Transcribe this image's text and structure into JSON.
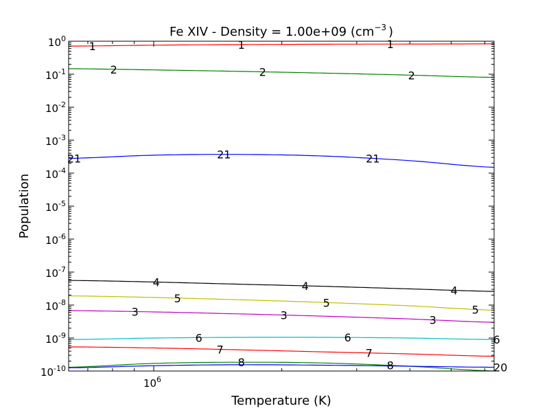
{
  "chart_data": {
    "type": "line",
    "title": "Fe XIV -  Density =   1.00e+09 (cm",
    "title_sup": "−3",
    "title_end": ")",
    "xlabel": "Temperature (K)",
    "ylabel": "Population",
    "xscale": "log",
    "yscale": "log",
    "xlim_log10": [
      5.8,
      6.8
    ],
    "ylim": [
      1e-10,
      1
    ],
    "x_log10": [
      5.8,
      6.0,
      6.2,
      6.4,
      6.6,
      6.8
    ],
    "xticks": [
      {
        "base": "10",
        "exp": "6",
        "log10": 6
      }
    ],
    "yticks": [
      {
        "base": "10",
        "exp": "0",
        "log10": 0
      },
      {
        "base": "10",
        "exp": "-1",
        "log10": -1
      },
      {
        "base": "10",
        "exp": "-2",
        "log10": -2
      },
      {
        "base": "10",
        "exp": "-3",
        "log10": -3
      },
      {
        "base": "10",
        "exp": "-4",
        "log10": -4
      },
      {
        "base": "10",
        "exp": "-5",
        "log10": -5
      },
      {
        "base": "10",
        "exp": "-6",
        "log10": -6
      },
      {
        "base": "10",
        "exp": "-7",
        "log10": -7
      },
      {
        "base": "10",
        "exp": "-8",
        "log10": -8
      },
      {
        "base": "10",
        "exp": "-9",
        "log10": -9
      },
      {
        "base": "10",
        "exp": "-10",
        "log10": -10
      }
    ],
    "series": [
      {
        "name": "1",
        "color": "#ff0000",
        "values": [
          0.71,
          0.76,
          0.79,
          0.81,
          0.82,
          0.83
        ],
        "label_x_log10": [
          5.856,
          6.206,
          6.556
        ]
      },
      {
        "name": "2",
        "color": "#008000",
        "values": [
          0.147,
          0.135,
          0.122,
          0.108,
          0.094,
          0.08
        ],
        "label_x_log10": [
          5.906,
          6.256,
          6.606
        ]
      },
      {
        "name": "21",
        "color": "#0000ff",
        "values": [
          0.00028,
          0.00035,
          0.00037,
          0.00033,
          0.00024,
          0.00015
        ],
        "label_x_log10": [
          5.813,
          6.165,
          6.515
        ]
      },
      {
        "name": "4",
        "color": "#000000",
        "values": [
          5.6e-08,
          5e-08,
          4.3e-08,
          3.7e-08,
          3.1e-08,
          2.6e-08
        ],
        "label_x_log10": [
          6.006,
          6.356,
          6.706
        ]
      },
      {
        "name": "5",
        "color": "#bfbf00",
        "values": [
          1.9e-08,
          1.7e-08,
          1.45e-08,
          1.2e-08,
          9.5e-09,
          7e-09
        ],
        "label_x_log10": [
          6.056,
          6.406,
          6.756
        ]
      },
      {
        "name": "3",
        "color": "#bf00bf",
        "values": [
          6.8e-09,
          6.2e-09,
          5.4e-09,
          4.6e-09,
          3.8e-09,
          3e-09
        ],
        "label_x_log10": [
          5.956,
          6.306,
          6.656
        ]
      },
      {
        "name": "6",
        "color": "#00bfbf",
        "values": [
          9e-10,
          1e-09,
          1.05e-09,
          1.05e-09,
          1e-09,
          9e-10
        ],
        "label_x_log10": [
          6.106,
          6.456,
          6.806
        ]
      },
      {
        "name": "7",
        "color": "#ff0000",
        "values": [
          5.4e-10,
          5e-10,
          4.4e-10,
          3.8e-10,
          3.3e-10,
          2.8e-10
        ],
        "label_x_log10": [
          6.156,
          6.506
        ]
      },
      {
        "name": "8",
        "color": "#008000",
        "values": [
          1.3e-10,
          1.7e-10,
          1.85e-10,
          1.75e-10,
          1.4e-10,
          1e-10
        ],
        "label_x_log10": [
          6.206,
          6.556
        ]
      },
      {
        "name": "20",
        "color": "#0000ff",
        "values": [
          1.25e-10,
          1.45e-10,
          1.55e-10,
          1.5e-10,
          1.4e-10,
          1.3e-10
        ],
        "label_x_log10": [
          6.815
        ]
      }
    ]
  }
}
